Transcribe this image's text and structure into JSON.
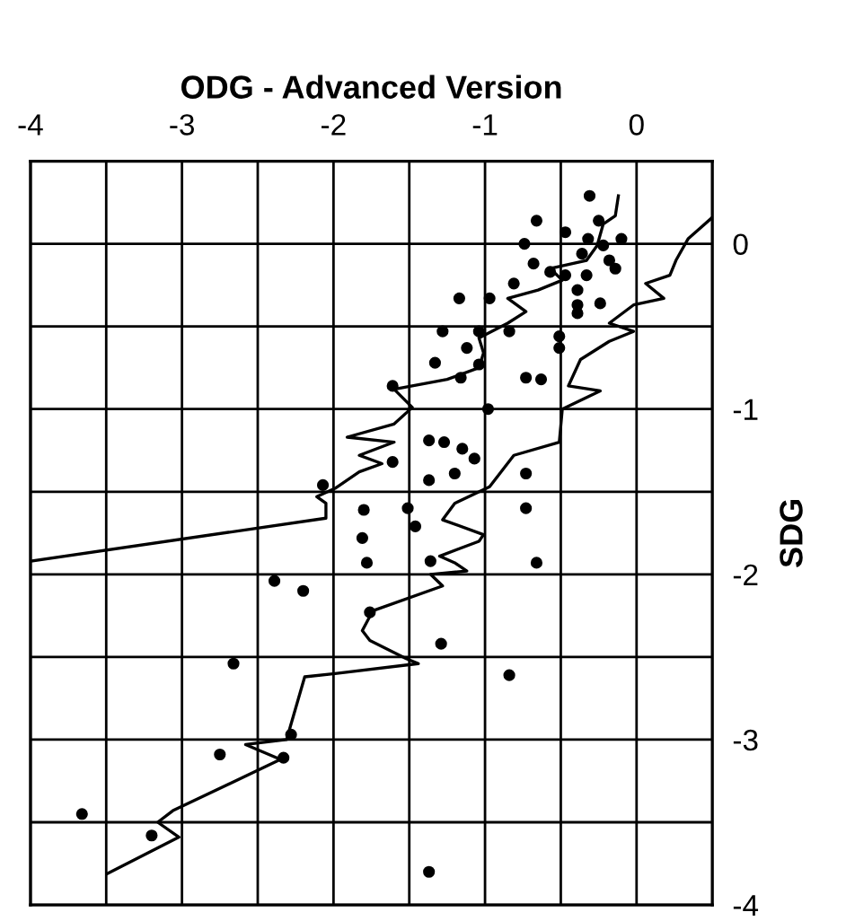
{
  "chart_data": {
    "type": "scatter",
    "xlabel": "ODG - Advanced Version",
    "ylabel": "SDG",
    "xlim": [
      -4,
      0.5
    ],
    "ylim": [
      -4,
      0.5
    ],
    "xticks": [
      -4,
      {
        "value": -3.5,
        "label": null
      },
      -3,
      {
        "value": -2.5,
        "label": null
      },
      -2,
      {
        "value": -1.5,
        "label": null
      },
      -1,
      {
        "value": -0.5,
        "label": null
      },
      0
    ],
    "yticks": [
      -4,
      {
        "value": -3.5,
        "label": null
      },
      -3,
      {
        "value": -2.5,
        "label": null
      },
      -2,
      {
        "value": -1.5,
        "label": null
      },
      -1,
      {
        "value": -0.5,
        "label": null
      },
      0
    ],
    "grid": true,
    "marker": "circle",
    "series": [
      {
        "color": "#000000",
        "x": [
          -0.31,
          -0.66,
          -0.47,
          -0.25,
          -0.74,
          -0.32,
          -0.1,
          -0.22,
          -0.36,
          -0.18,
          -0.68,
          -0.14,
          -0.57,
          -0.47,
          -0.33,
          -0.81,
          -0.39,
          -1.17,
          -0.97,
          -0.39,
          -0.24,
          -0.39,
          -1.28,
          -1.04,
          -0.84,
          -0.51,
          -1.12,
          -0.51,
          -1.33,
          -1.04,
          -0.73,
          -0.63,
          -1.16,
          -1.61,
          -0.98,
          -1.37,
          -1.27,
          -1.15,
          -1.07,
          -1.61,
          -1.37,
          -1.2,
          -0.73,
          -2.07,
          -1.8,
          -1.51,
          -1.46,
          -0.73,
          -1.81,
          -1.78,
          -1.36,
          -0.66,
          -2.39,
          -2.2,
          -1.76,
          -1.29,
          -2.66,
          -0.84,
          -2.28,
          -2.75,
          -2.33,
          -3.66,
          -3.2,
          -1.37
        ],
        "values": [
          0.29,
          0.14,
          0.07,
          0.14,
          0.0,
          0.03,
          0.03,
          -0.01,
          -0.06,
          -0.1,
          -0.12,
          -0.15,
          -0.17,
          -0.19,
          -0.19,
          -0.24,
          -0.28,
          -0.33,
          -0.33,
          -0.37,
          -0.36,
          -0.42,
          -0.53,
          -0.53,
          -0.53,
          -0.56,
          -0.63,
          -0.63,
          -0.72,
          -0.73,
          -0.81,
          -0.82,
          -0.81,
          -0.86,
          -1.0,
          -1.19,
          -1.2,
          -1.24,
          -1.3,
          -1.32,
          -1.43,
          -1.39,
          -1.39,
          -1.46,
          -1.61,
          -1.6,
          -1.71,
          -1.6,
          -1.78,
          -1.93,
          -1.92,
          -1.93,
          -2.04,
          -2.1,
          -2.23,
          -2.42,
          -2.54,
          -2.61,
          -2.97,
          -3.09,
          -3.11,
          -3.45,
          -3.58,
          -3.8
        ]
      },
      {
        "type": "line",
        "color": "#000000",
        "marker": "none",
        "line_style": "solid",
        "x": [
          -4,
          -2.05,
          -2.05,
          -2.11,
          -1.99,
          -1.83,
          -1.68,
          -1.83,
          -1.6,
          -1.91,
          -1.6,
          -1.48,
          -1.6,
          -1.25,
          -1.04,
          -1.01,
          -1.04,
          -0.85,
          -0.73,
          -0.85,
          -0.65,
          -0.49,
          -0.57,
          -0.33,
          -0.26,
          -0.22,
          -0.14,
          -0.12
        ],
        "values": [
          -1.92,
          -1.66,
          -1.57,
          -1.53,
          -1.48,
          -1.38,
          -1.33,
          -1.28,
          -1.2,
          -1.17,
          -1.09,
          -0.99,
          -0.88,
          -0.82,
          -0.75,
          -0.66,
          -0.57,
          -0.48,
          -0.41,
          -0.33,
          -0.28,
          -0.22,
          -0.15,
          -0.1,
          -0.01,
          0.12,
          0.17,
          0.29
        ]
      },
      {
        "type": "line",
        "color": "#000000",
        "marker": "none",
        "line_style": "solid",
        "x": [
          -3.49,
          -3.02,
          -3.16,
          -3.06,
          -2.35,
          -2.58,
          -2.31,
          -2.19,
          -1.99,
          -1.44,
          -1.52,
          -1.76,
          -1.81,
          -1.74,
          -1.28,
          -1.36,
          -1.12,
          -1.2,
          -1.3,
          -1.04,
          -1.01,
          -1.28,
          -1.2,
          -0.97,
          -0.81,
          -0.51,
          -0.49,
          -0.24,
          -0.45,
          -0.37,
          -0.18,
          -0.02,
          -0.18,
          -0.02,
          0.18,
          0.06,
          0.22,
          0.26,
          0.34,
          0.5
        ],
        "values": [
          -3.81,
          -3.59,
          -3.5,
          -3.43,
          -3.12,
          -3.03,
          -3.0,
          -2.62,
          -2.6,
          -2.54,
          -2.51,
          -2.4,
          -2.34,
          -2.22,
          -2.07,
          -2.0,
          -1.98,
          -1.93,
          -1.89,
          -1.8,
          -1.76,
          -1.67,
          -1.57,
          -1.47,
          -1.28,
          -1.2,
          -1.0,
          -0.89,
          -0.86,
          -0.7,
          -0.59,
          -0.53,
          -0.48,
          -0.37,
          -0.33,
          -0.24,
          -0.19,
          -0.1,
          0.03,
          0.16
        ]
      }
    ]
  }
}
